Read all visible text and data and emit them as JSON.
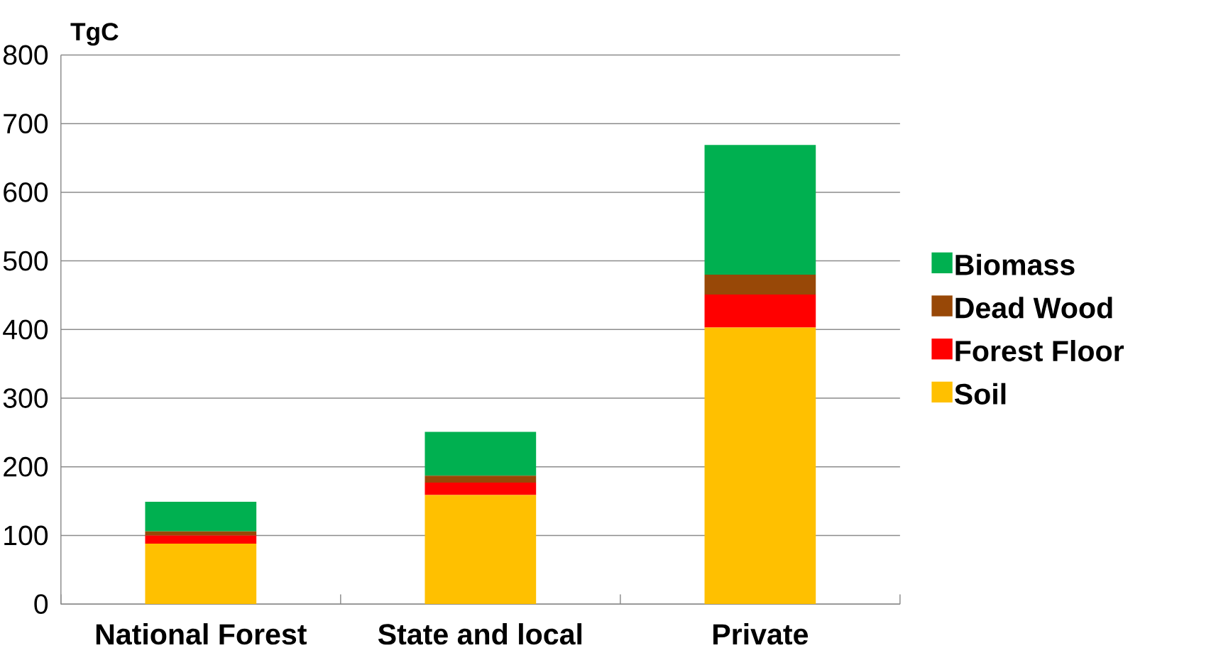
{
  "chart_data": {
    "type": "bar",
    "stacked": true,
    "ylabel": "TgC",
    "categories": [
      "National Forest",
      "State and local",
      "Private"
    ],
    "series": [
      {
        "name": "Soil",
        "color": "#ffc000",
        "values": [
          88,
          159,
          403
        ]
      },
      {
        "name": "Forest Floor",
        "color": "#ff0000",
        "values": [
          12,
          18,
          48
        ]
      },
      {
        "name": "Dead Wood",
        "color": "#984807",
        "values": [
          6,
          10,
          29
        ]
      },
      {
        "name": "Biomass",
        "color": "#00b050",
        "values": [
          43,
          64,
          189
        ]
      }
    ],
    "ylim": [
      0,
      800
    ],
    "yticks": [
      0,
      100,
      200,
      300,
      400,
      500,
      600,
      700,
      800
    ],
    "grid": "y",
    "legend": "right"
  }
}
